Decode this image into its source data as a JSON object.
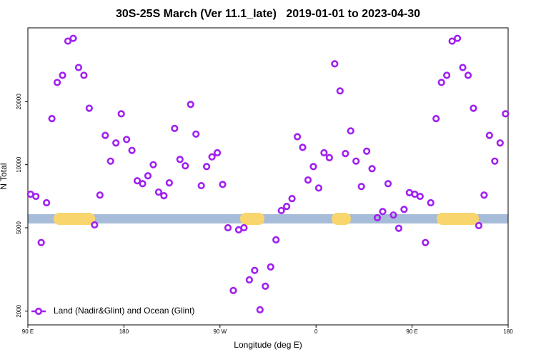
{
  "chart_data": {
    "type": "scatter",
    "title": "30S-25S March (Ver 11.1_late)   2019-01-01 to 2023-04-30",
    "x_label": "Longitude (deg E)",
    "y_label": "N Total",
    "xlim": [
      90,
      540
    ],
    "xticks": [
      {
        "value": 90,
        "label": "90 E"
      },
      180,
      {
        "value": 270,
        "label": "90 W"
      },
      {
        "value": 360,
        "label": "0"
      },
      {
        "value": 450,
        "label": "90 E"
      },
      {
        "value": 540,
        "label": "180"
      }
    ],
    "ylim": [
      1720,
      45000
    ],
    "y_scale": "log",
    "yticks": [
      2000,
      5000,
      10000,
      20000
    ],
    "grid": false,
    "legend": "bottom-left",
    "x": [
      92.5,
      97.5,
      102.5,
      107.5,
      112.5,
      117.5,
      122.5,
      127.5,
      132.5,
      137.5,
      142.5,
      147.5,
      152.5,
      157.5,
      162.5,
      167.5,
      172.5,
      177.5,
      182.5,
      187.5,
      192.5,
      197.5,
      202.5,
      207.5,
      212.5,
      217.5,
      222.5,
      227.5,
      232.5,
      237.5,
      242.5,
      247.5,
      252.5,
      257.5,
      262.5,
      267.5,
      272.5,
      277.5,
      282.5,
      287.5,
      292.5,
      297.5,
      302.5,
      307.5,
      312.5,
      317.5,
      322.5,
      327.5,
      332.5,
      337.5,
      342.5,
      347.5,
      352.5,
      357.5,
      362.5,
      367.5,
      372.5,
      377.5,
      382.5,
      387.5,
      392.5,
      397.5,
      402.5,
      407.5,
      412.5,
      417.5,
      422.5,
      427.5,
      432.5,
      437.5,
      442.5,
      447.5,
      452.5,
      457.5,
      462.5,
      467.5,
      472.5,
      477.5,
      482.5,
      487.5,
      492.5,
      497.5,
      502.5,
      507.5,
      512.5,
      517.5,
      522.5,
      527.5,
      532.5,
      537.5
    ],
    "series": [
      {
        "name": "Land (Nadir&Glint) and Ocean (Glint)",
        "color": "#a020f0",
        "values": [
          7230,
          7060,
          4250,
          6580,
          16600,
          24700,
          26700,
          38900,
          40100,
          29100,
          26700,
          18600,
          5160,
          7160,
          13800,
          10400,
          12700,
          17500,
          13200,
          11700,
          8380,
          8120,
          8850,
          10000,
          7400,
          7110,
          8190,
          14900,
          10600,
          9880,
          19400,
          14000,
          7940,
          9800,
          10900,
          11400,
          8050,
          5000,
          2510,
          4890,
          5000,
          2820,
          3130,
          2030,
          2630,
          3250,
          4380,
          6040,
          6320,
          6890,
          13600,
          12100,
          8450,
          9800,
          7740,
          11400,
          10800,
          30300,
          22500,
          11300,
          14500,
          10400,
          7870,
          11600,
          9570,
          5580,
          5980,
          8120,
          5750,
          4970,
          6120,
          7350,
          7230,
          7060,
          4250,
          6580,
          16600,
          24700,
          26700,
          38900,
          40100,
          29100,
          26700,
          18600,
          5120,
          7160,
          13800,
          10400,
          12700,
          17500
        ]
      }
    ]
  }
}
